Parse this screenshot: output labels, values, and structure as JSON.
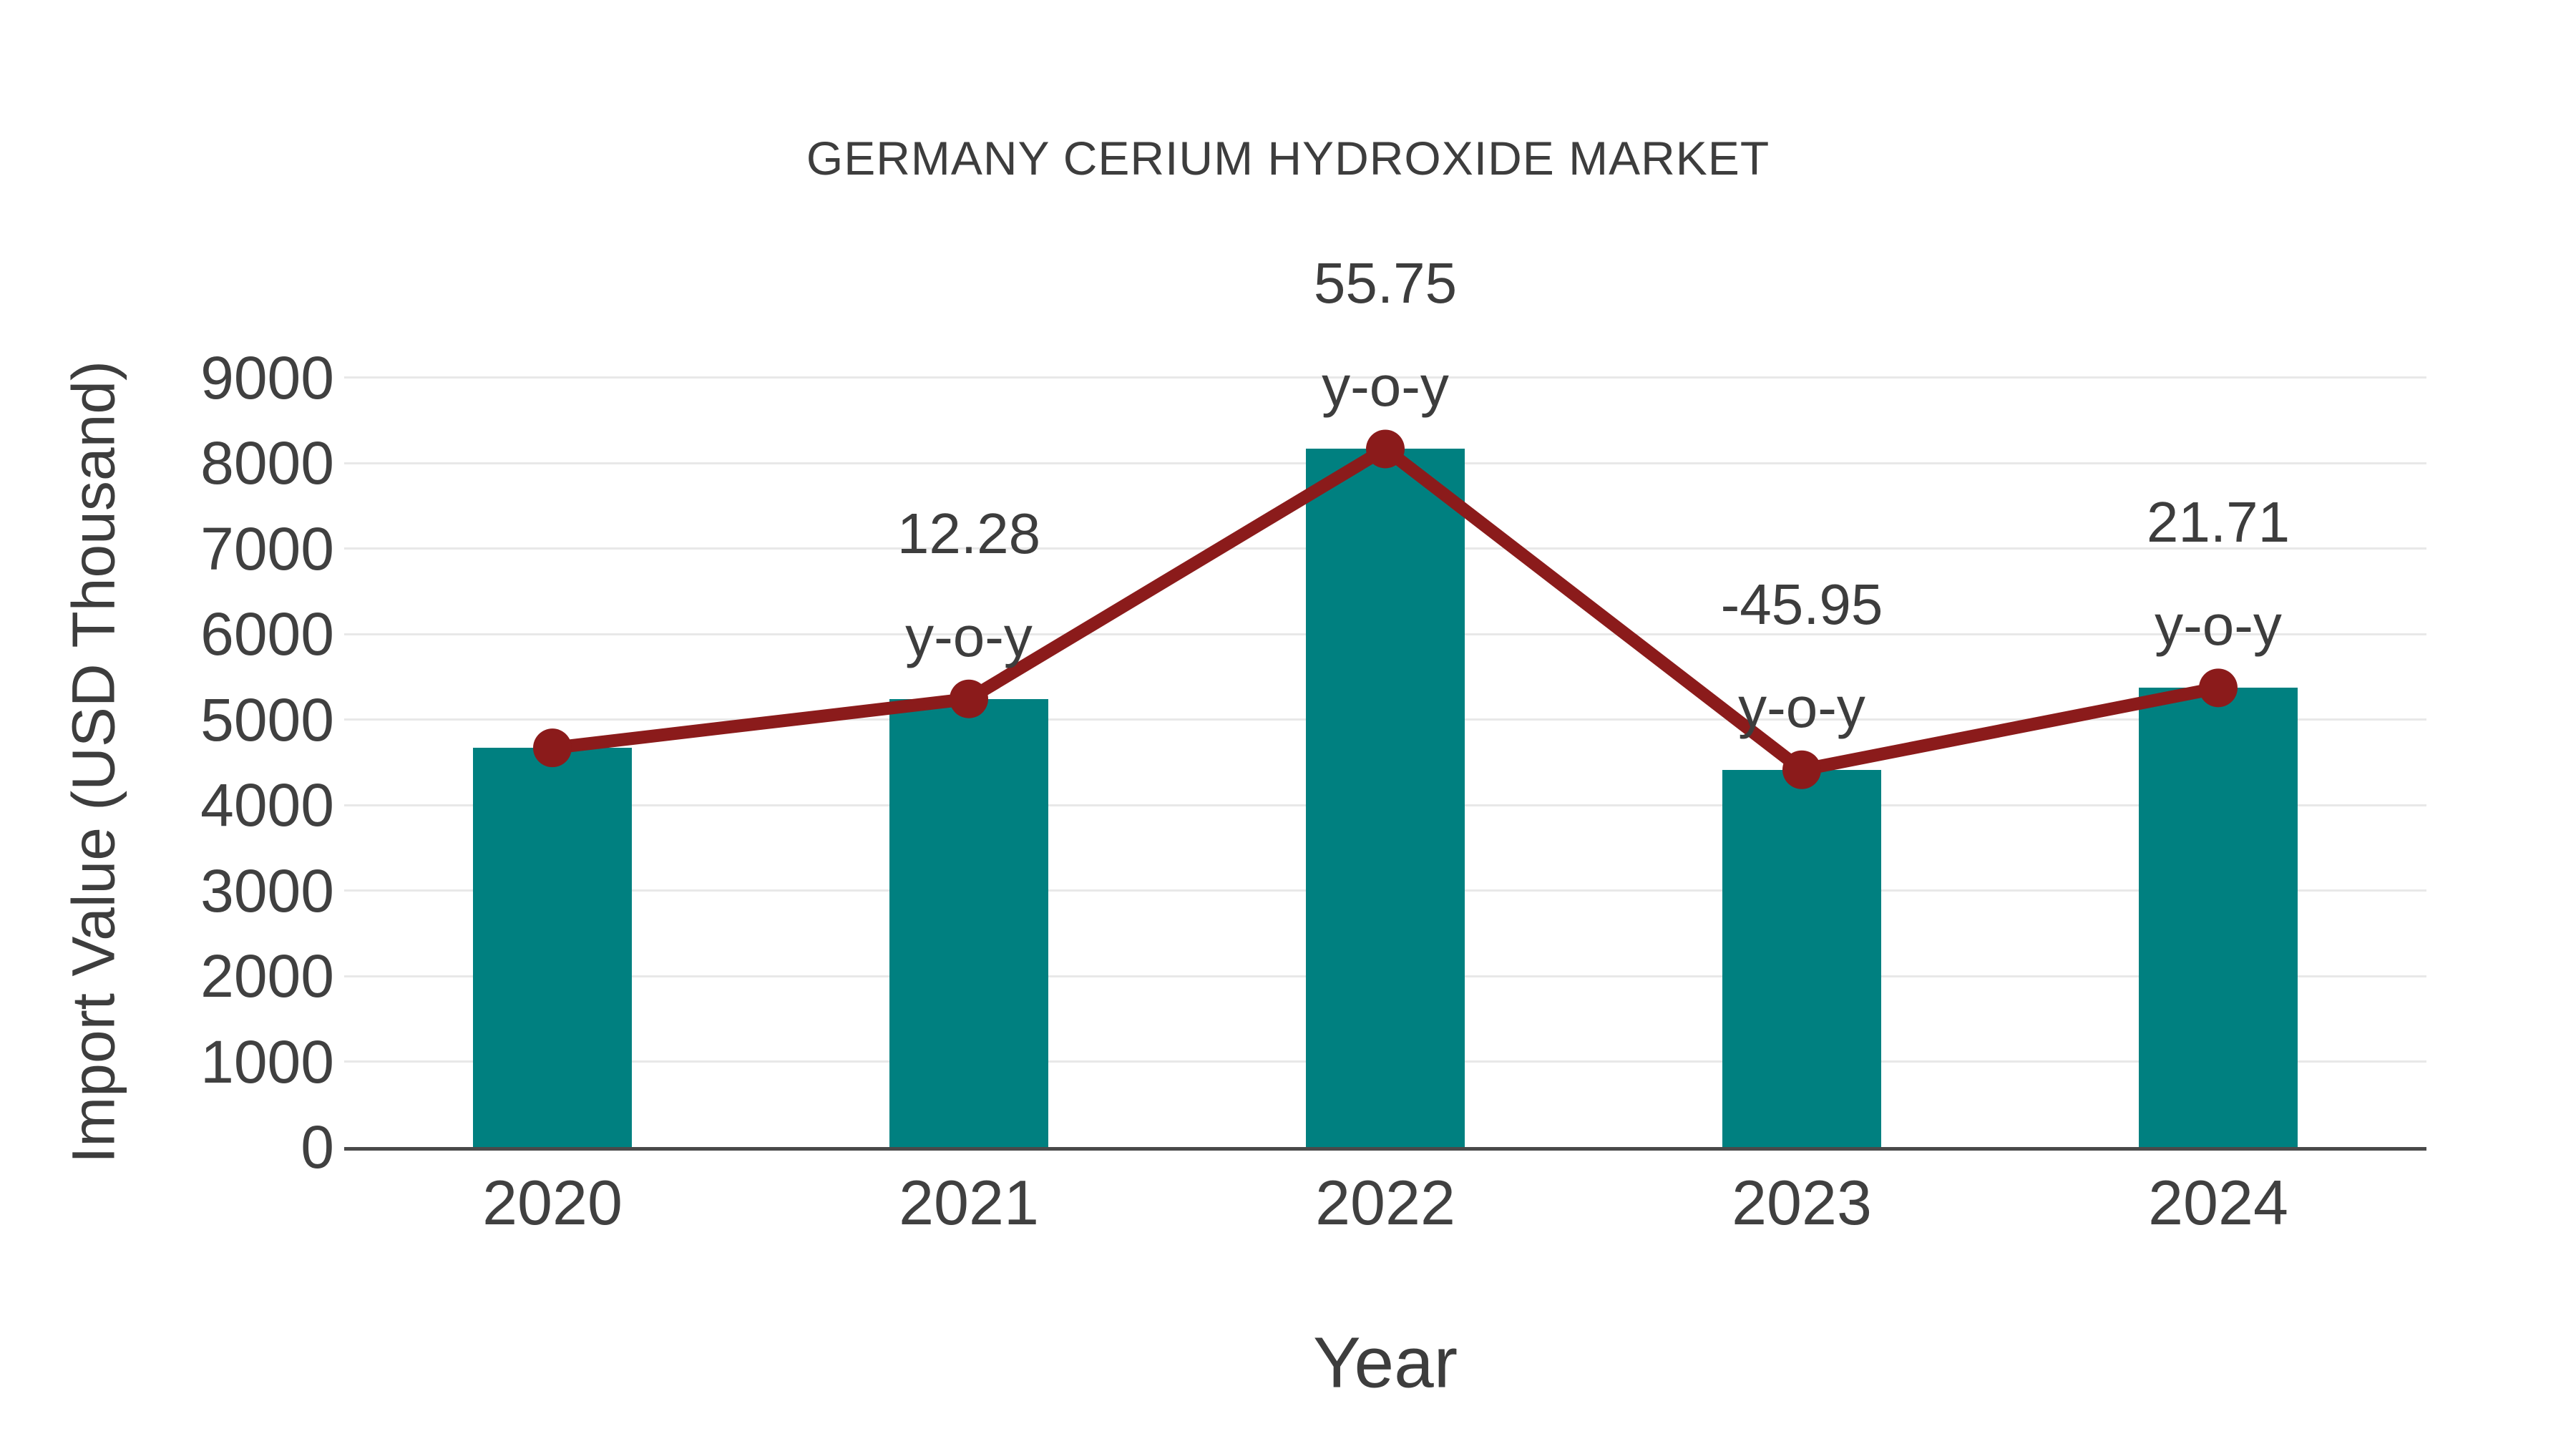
{
  "chart_data": {
    "type": "bar",
    "title": "GERMANY CERIUM HYDROXIDE MARKET",
    "xlabel": "Year",
    "ylabel": "Import Value (USD Thousand)",
    "categories": [
      "2020",
      "2021",
      "2022",
      "2023",
      "2024"
    ],
    "values": [
      4670,
      5243,
      8167,
      4414,
      5372
    ],
    "overlay_line": {
      "type": "line",
      "follows": "values",
      "marker": "circle"
    },
    "yoy_annotations": [
      {
        "category": "2021",
        "value_label": "12.28",
        "suffix_label": "y-o-y"
      },
      {
        "category": "2022",
        "value_label": "55.75",
        "suffix_label": "y-o-y"
      },
      {
        "category": "2023",
        "value_label": "-45.95",
        "suffix_label": "y-o-y"
      },
      {
        "category": "2024",
        "value_label": "21.71",
        "suffix_label": "y-o-y"
      }
    ],
    "yticks": [
      0,
      1000,
      2000,
      3000,
      4000,
      5000,
      6000,
      7000,
      8000,
      9000
    ],
    "ylim": [
      0,
      9820
    ],
    "grid": true,
    "legend": false,
    "colors": {
      "bar": "#008080",
      "line": "#8b1b1b",
      "grid": "#e8e8e8",
      "axis": "#4a4a4a",
      "text": "#3d3d3d",
      "background": "#ffffff"
    }
  }
}
